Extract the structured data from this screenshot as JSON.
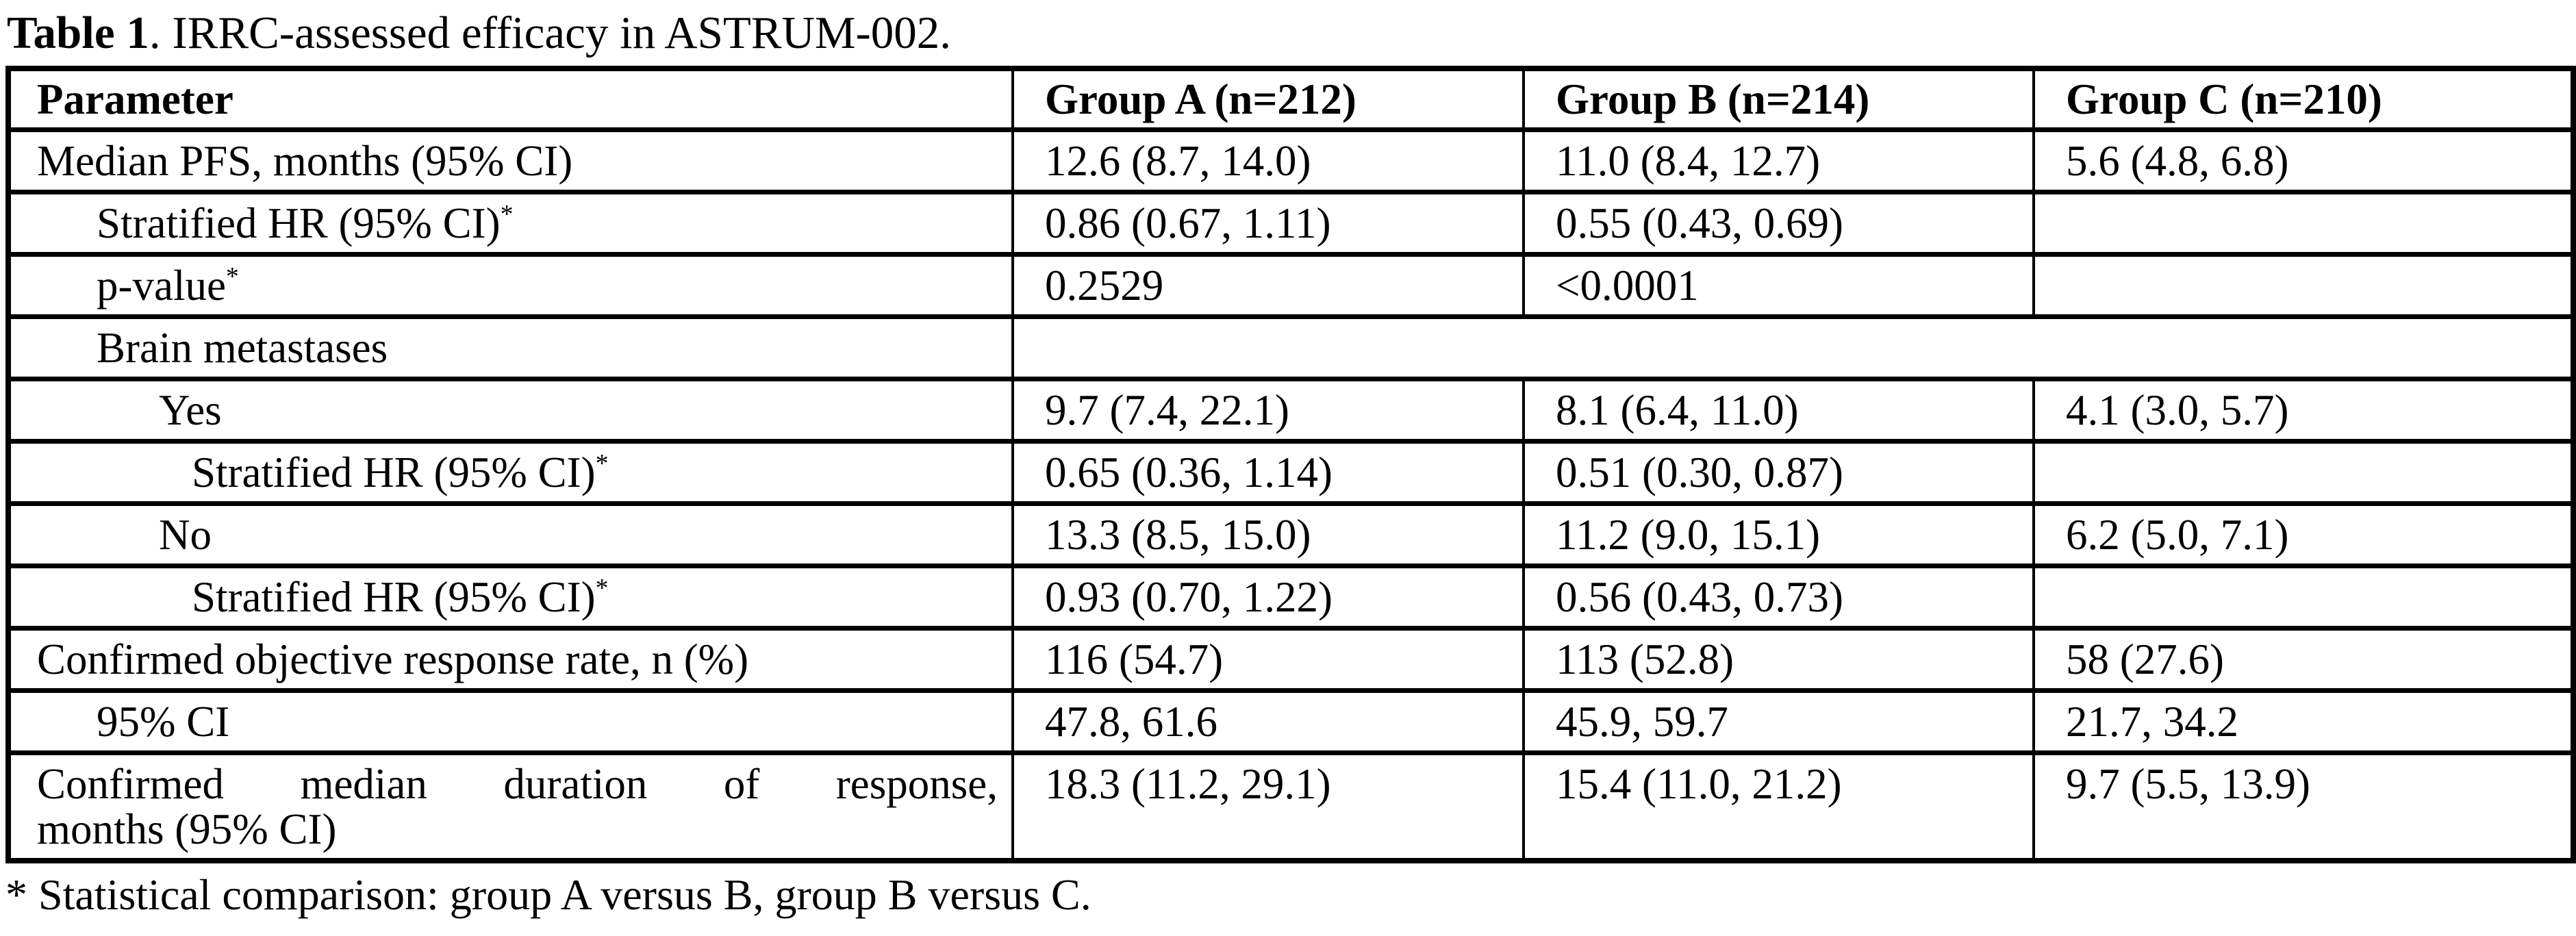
{
  "title": {
    "bold": "Table 1",
    "rest": ". IRRC-assessed efficacy in ASTRUM-002."
  },
  "table": {
    "columns": [
      "Parameter",
      "Group A (n=212)",
      "Group B (n=214)",
      "Group C (n=210)"
    ],
    "rows": [
      {
        "param": "Median PFS, months (95% CI)",
        "indent": 0,
        "values": [
          "12.6 (8.7, 14.0)",
          "11.0 (8.4, 12.7)",
          "5.6 (4.8, 6.8)"
        ]
      },
      {
        "param": "Stratified HR (95% CI)",
        "sup": "*",
        "indent": 1,
        "values": [
          "0.86 (0.67, 1.11)",
          "0.55 (0.43, 0.69)",
          ""
        ]
      },
      {
        "param": "p-value",
        "sup": "*",
        "indent": 1,
        "values": [
          "0.2529",
          "<0.0001",
          ""
        ]
      },
      {
        "param": "Brain metastases",
        "indent": 1,
        "merged": true,
        "values": [
          "",
          "",
          ""
        ]
      },
      {
        "param": "Yes",
        "indent": 2,
        "values": [
          "9.7 (7.4, 22.1)",
          "8.1 (6.4, 11.0)",
          "4.1 (3.0, 5.7)"
        ]
      },
      {
        "param": "Stratified HR (95% CI)",
        "sup": "*",
        "indent": 3,
        "values": [
          "0.65 (0.36, 1.14)",
          "0.51 (0.30, 0.87)",
          ""
        ]
      },
      {
        "param": "No",
        "indent": 2,
        "values": [
          "13.3 (8.5, 15.0)",
          "11.2 (9.0, 15.1)",
          "6.2 (5.0, 7.1)"
        ]
      },
      {
        "param": "Stratified HR (95% CI)",
        "sup": "*",
        "indent": 3,
        "values": [
          "0.93 (0.70, 1.22)",
          "0.56 (0.43, 0.73)",
          ""
        ]
      },
      {
        "param": "Confirmed objective response rate, n (%)",
        "indent": 0,
        "values": [
          "116 (54.7)",
          "113 (52.8)",
          "58 (27.6)"
        ]
      },
      {
        "param": "95% CI",
        "indent": 1,
        "values": [
          "47.8, 61.6",
          "45.9, 59.7",
          "21.7, 34.2"
        ]
      },
      {
        "param_lines": [
          "Confirmed median duration of response,",
          "months (95% CI)"
        ],
        "param": "Confirmed median duration of response, months (95% CI)",
        "indent": 0,
        "values": [
          "18.3 (11.2, 29.1)",
          "15.4 (11.0, 21.2)",
          "9.7 (5.5, 13.9)"
        ]
      }
    ]
  },
  "footnote": "* Statistical comparison: group A versus B, group B versus C."
}
